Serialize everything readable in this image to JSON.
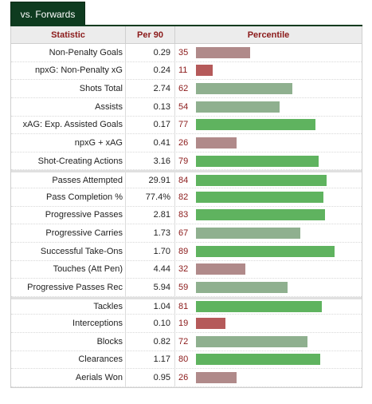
{
  "tab": {
    "label": "vs. Forwards"
  },
  "header": {
    "statistic": "Statistic",
    "per90": "Per 90",
    "percentile": "Percentile"
  },
  "colors": {
    "tab_bg": "#0e3b1f",
    "header_text": "#8b1a1a",
    "high": "#5fb35f",
    "mid_high": "#8fb08f",
    "mid_low": "#b08a8a",
    "low": "#b55a5a"
  },
  "groups": [
    {
      "rows": [
        {
          "stat": "Non-Penalty Goals",
          "per90": "0.29",
          "pct": "35"
        },
        {
          "stat": "npxG: Non-Penalty xG",
          "per90": "0.24",
          "pct": "11"
        },
        {
          "stat": "Shots Total",
          "per90": "2.74",
          "pct": "62"
        },
        {
          "stat": "Assists",
          "per90": "0.13",
          "pct": "54"
        },
        {
          "stat": "xAG: Exp. Assisted Goals",
          "per90": "0.17",
          "pct": "77"
        },
        {
          "stat": "npxG + xAG",
          "per90": "0.41",
          "pct": "26"
        },
        {
          "stat": "Shot-Creating Actions",
          "per90": "3.16",
          "pct": "79"
        }
      ]
    },
    {
      "rows": [
        {
          "stat": "Passes Attempted",
          "per90": "29.91",
          "pct": "84"
        },
        {
          "stat": "Pass Completion %",
          "per90": "77.4%",
          "pct": "82"
        },
        {
          "stat": "Progressive Passes",
          "per90": "2.81",
          "pct": "83"
        },
        {
          "stat": "Progressive Carries",
          "per90": "1.73",
          "pct": "67"
        },
        {
          "stat": "Successful Take-Ons",
          "per90": "1.70",
          "pct": "89"
        },
        {
          "stat": "Touches (Att Pen)",
          "per90": "4.44",
          "pct": "32"
        },
        {
          "stat": "Progressive Passes Rec",
          "per90": "5.94",
          "pct": "59"
        }
      ]
    },
    {
      "rows": [
        {
          "stat": "Tackles",
          "per90": "1.04",
          "pct": "81"
        },
        {
          "stat": "Interceptions",
          "per90": "0.10",
          "pct": "19"
        },
        {
          "stat": "Blocks",
          "per90": "0.82",
          "pct": "72"
        },
        {
          "stat": "Clearances",
          "per90": "1.17",
          "pct": "80"
        },
        {
          "stat": "Aerials Won",
          "per90": "0.95",
          "pct": "26"
        }
      ]
    }
  ]
}
